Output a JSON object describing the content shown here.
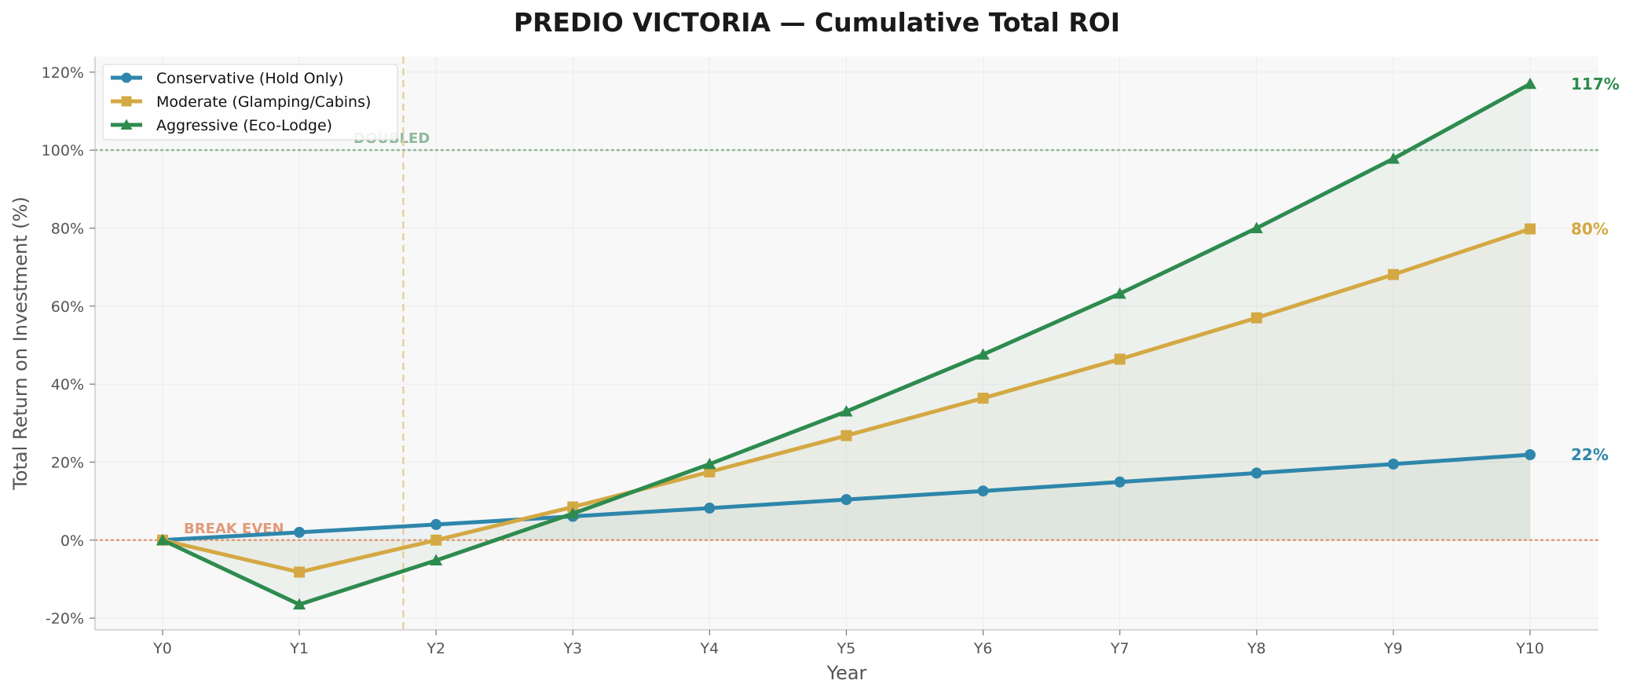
{
  "chart_data": {
    "type": "line",
    "title": "PREDIO VICTORIA  —  Cumulative Total ROI",
    "xlabel": "Year",
    "ylabel": "Total Return on Investment (%)",
    "categories": [
      "Y0",
      "Y1",
      "Y2",
      "Y3",
      "Y4",
      "Y5",
      "Y6",
      "Y7",
      "Y8",
      "Y9",
      "Y10"
    ],
    "ylim": [
      -23,
      124
    ],
    "yticks": [
      -20,
      0,
      20,
      40,
      60,
      80,
      100,
      120
    ],
    "ytick_labels": [
      "-20%",
      "0%",
      "20%",
      "40%",
      "60%",
      "80%",
      "100%",
      "120%"
    ],
    "grid": true,
    "legend_position": "top-left",
    "series": [
      {
        "name": "Conservative (Hold Only)",
        "color": "#2e86ab",
        "marker": "circle",
        "values": [
          0,
          2.0,
          4.0,
          6.1,
          8.2,
          10.4,
          12.6,
          14.9,
          17.2,
          19.5,
          21.9
        ],
        "end_label": "22%"
      },
      {
        "name": "Moderate (Glamping/Cabins)",
        "color": "#d4a843",
        "marker": "square",
        "values": [
          0,
          -8.2,
          0,
          8.5,
          17.5,
          26.8,
          36.4,
          46.4,
          57.0,
          68.1,
          79.8
        ],
        "end_label": "80%"
      },
      {
        "name": "Aggressive (Eco-Lodge)",
        "color": "#2e8b4e",
        "marker": "triangle",
        "values": [
          0,
          -16.5,
          -5.2,
          6.8,
          19.5,
          33.0,
          47.6,
          63.2,
          80.0,
          97.8,
          117.0
        ],
        "end_label": "117%"
      }
    ],
    "reference_lines": [
      {
        "axis": "y",
        "value": 0,
        "label": "BREAK EVEN",
        "color": "#e09a7a",
        "style": "dotted"
      },
      {
        "axis": "y",
        "value": 100,
        "label": "DOUBLED",
        "color": "#8fb89c",
        "style": "dotted"
      },
      {
        "axis": "x",
        "value": 1.76,
        "color": "#e6cfa0",
        "style": "dashed"
      }
    ]
  }
}
